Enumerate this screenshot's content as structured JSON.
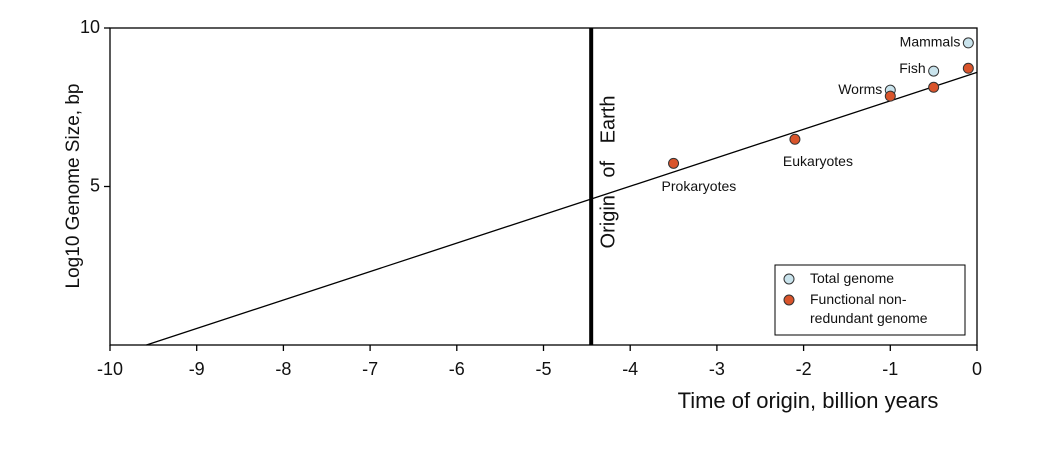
{
  "chart_data": {
    "type": "scatter",
    "x_label": "Time of origin, billion years",
    "y_label": "Log10 Genome Size, bp",
    "xlim": [
      -10,
      0
    ],
    "ylim": [
      0,
      10
    ],
    "xticks": [
      -10,
      -9,
      -8,
      -7,
      -6,
      -5,
      -4,
      -3,
      -2,
      -1,
      0
    ],
    "yticks": [
      5,
      10
    ],
    "legend_position": "lower right",
    "series": [
      {
        "name": "Total genome",
        "color": "#c9e3ec",
        "x": [
          -1,
          -0.5,
          -0.1
        ],
        "values": [
          8.04,
          8.64,
          9.53
        ]
      },
      {
        "name": "Functional non-redundant genome",
        "color": "#d9542b",
        "x": [
          -3.5,
          -2.1,
          -1,
          -0.5,
          -0.1
        ],
        "values": [
          5.73,
          6.49,
          7.85,
          8.13,
          8.73
        ]
      }
    ],
    "trend_line": {
      "x": [
        -9.58,
        0
      ],
      "values": [
        0,
        8.6
      ]
    },
    "reference_line": {
      "x": -4.45,
      "label": "Origin of Earth"
    },
    "point_labels": [
      "Prokaryotes",
      "Eukaryotes",
      "Worms",
      "Fish",
      "Mammals"
    ]
  }
}
